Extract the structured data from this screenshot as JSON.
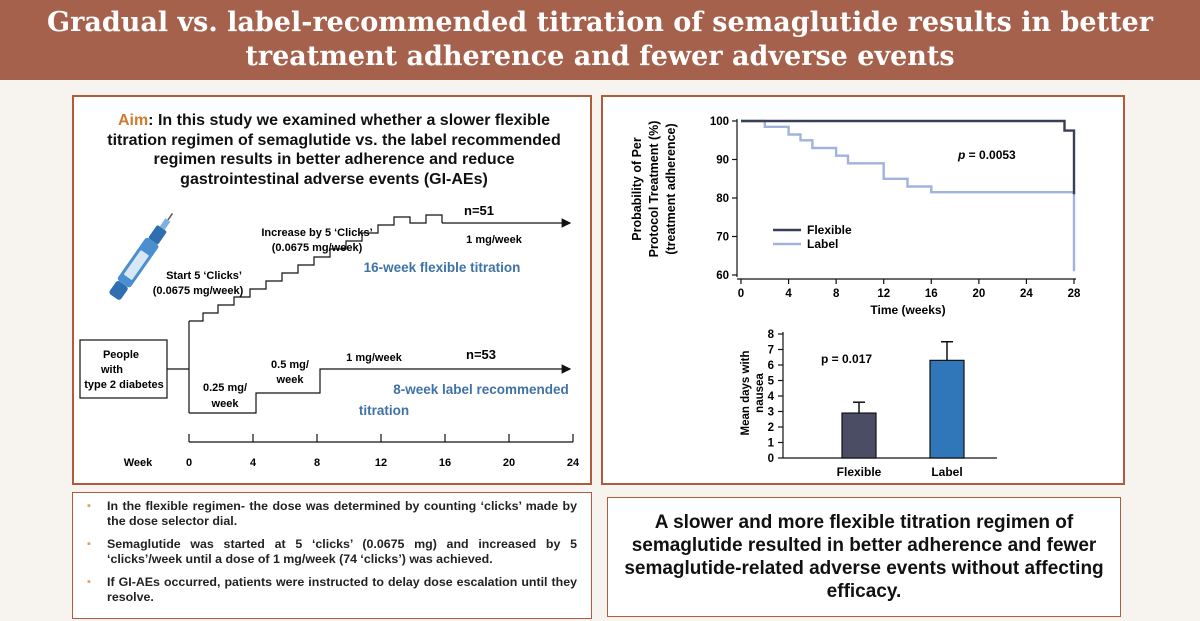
{
  "title": "Gradual vs. label-recommended titration of semaglutide results in better treatment adherence and fewer adverse events",
  "aim": {
    "label": "Aim",
    "text": ": In this study we examined whether a slower flexible titration regimen of semaglutide vs. the label recommended regimen results in better adherence and reduce gastrointestinal adverse events (GI-AEs)"
  },
  "titration_diagram": {
    "flexible": {
      "n": "n=51",
      "start_label_1": "Start 5 ‘Clicks’",
      "start_label_2": "(0.0675 mg/week)",
      "increase_label_1": "Increase by 5 ‘Clicks’",
      "increase_label_2": "(0.0675 mg/week)",
      "end_dose": "1 mg/week",
      "name": "16-week flexible titration"
    },
    "label": {
      "n": "n=53",
      "dose_1a": "0.25 mg/",
      "dose_1b": "week",
      "dose_2a": "0.5 mg/",
      "dose_2b": "week",
      "dose_3": "1 mg/week",
      "name_1": "8-week label recommended",
      "name_2": "titration"
    },
    "population_1": "People",
    "population_2": "with",
    "population_3": "type 2 diabetes",
    "axis_label": "Week",
    "weeks": [
      0,
      4,
      8,
      12,
      16,
      20,
      24
    ]
  },
  "chart_data": [
    {
      "type": "line",
      "title": "",
      "xlabel": "Time (weeks)",
      "ylabel_1": "Probability of Per",
      "ylabel_2": "Protocol Treatment (%)",
      "ylabel_3": "(treatment adherence)",
      "xlim": [
        0,
        28
      ],
      "ylim": [
        60,
        100
      ],
      "xticks": [
        0,
        4,
        8,
        12,
        16,
        20,
        24,
        28
      ],
      "yticks": [
        60,
        70,
        80,
        90,
        100
      ],
      "annotation": "p = 0.0053",
      "series": [
        {
          "name": "Flexible",
          "color": "#3a3f58",
          "x": [
            0,
            27.2,
            27.2,
            28,
            28
          ],
          "y": [
            100,
            100,
            97.5,
            97.5,
            81
          ]
        },
        {
          "name": "Label",
          "color": "#9fb3dc",
          "x": [
            0,
            2,
            2,
            4,
            4,
            5,
            5,
            6,
            6,
            8,
            8,
            9,
            9,
            12,
            12,
            14,
            14,
            16,
            16,
            28,
            28
          ],
          "y": [
            100,
            100,
            98.5,
            98.5,
            96.5,
            96.5,
            95,
            95,
            93,
            93,
            91,
            91,
            89,
            89,
            85,
            85,
            83,
            83,
            81.5,
            81.5,
            61
          ]
        }
      ]
    },
    {
      "type": "bar",
      "title": "",
      "xlabel": "",
      "ylabel_1": "Mean days with",
      "ylabel_2": "nausea",
      "ylim": [
        0,
        8
      ],
      "yticks": [
        0,
        1,
        2,
        3,
        4,
        5,
        6,
        7,
        8
      ],
      "categories": [
        "Flexible",
        "Label"
      ],
      "values": [
        2.9,
        6.3
      ],
      "errors": [
        0.7,
        1.2
      ],
      "colors": [
        "#4a4d63",
        "#2f77b8"
      ],
      "annotation": "p = 0.017"
    }
  ],
  "bullets": [
    "In the flexible regimen- the dose was determined by counting ‘clicks’ made by the dose selector dial.",
    "Semaglutide was started at 5 ‘clicks’ (0.0675 mg) and increased by 5 ‘clicks’/week until a dose of 1 mg/week (74 ‘clicks’) was achieved.",
    "If GI-AEs occurred, patients were instructed to delay dose escalation until they resolve."
  ],
  "bullet_glyph": "▪",
  "conclusion": "A slower and more flexible titration regimen of semaglutide resulted in better adherence and fewer semaglutide-related adverse events without affecting efficacy."
}
